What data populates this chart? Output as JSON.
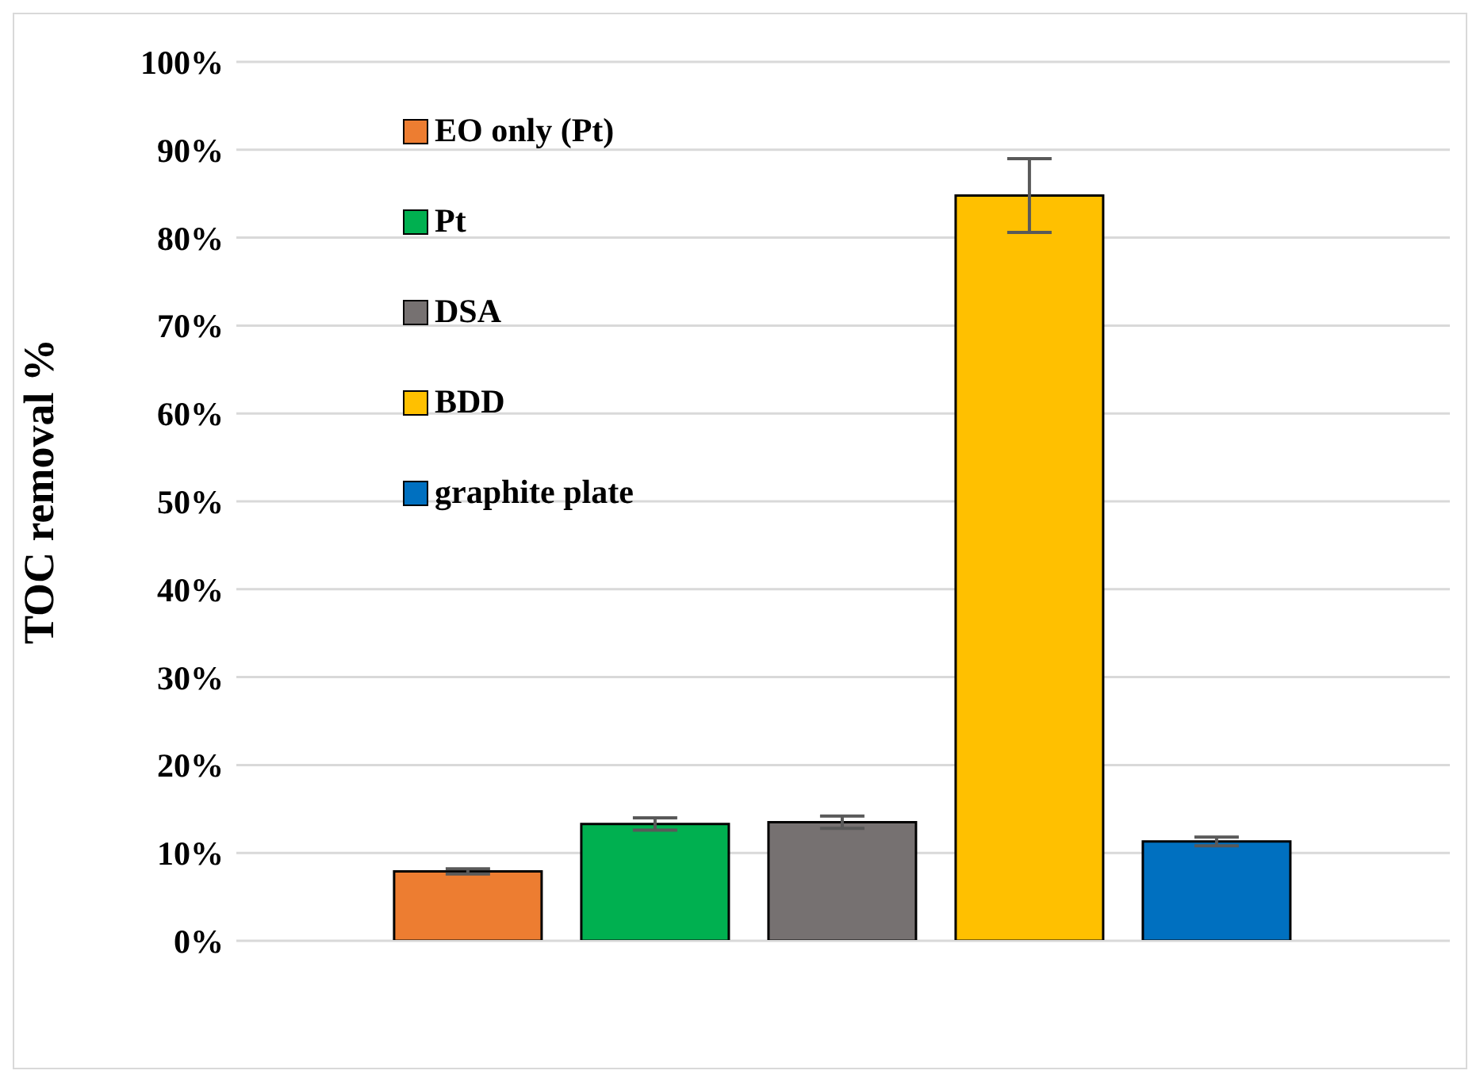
{
  "chart_data": {
    "type": "bar",
    "ylabel": "TOC removal %",
    "categories": [
      null
    ],
    "series": [
      {
        "name": "EO only (Pt)",
        "color": "#ed7d31",
        "values": [
          7.9
        ],
        "errors": [
          0.3
        ]
      },
      {
        "name": "Pt",
        "color": "#00b050",
        "values": [
          13.3
        ],
        "errors": [
          0.7
        ]
      },
      {
        "name": "DSA",
        "color": "#767171",
        "values": [
          13.5
        ],
        "errors": [
          0.7
        ]
      },
      {
        "name": "BDD",
        "color": "#ffc000",
        "values": [
          84.8
        ],
        "errors": [
          4.2
        ]
      },
      {
        "name": "graphite plate",
        "color": "#0070c0",
        "values": [
          11.3
        ],
        "errors": [
          0.5
        ]
      }
    ],
    "ylim": [
      0,
      100
    ],
    "yticks": [
      {
        "value": 0,
        "label": "0%"
      },
      {
        "value": 10,
        "label": "10%"
      },
      {
        "value": 20,
        "label": "20%"
      },
      {
        "value": 30,
        "label": "30%"
      },
      {
        "value": 40,
        "label": "40%"
      },
      {
        "value": 50,
        "label": "50%"
      },
      {
        "value": 60,
        "label": "60%"
      },
      {
        "value": 70,
        "label": "70%"
      },
      {
        "value": 80,
        "label": "80%"
      },
      {
        "value": 90,
        "label": "90%"
      },
      {
        "value": 100,
        "label": "100%"
      }
    ],
    "grid": "y",
    "legend": "top left",
    "tick_labels": "y"
  }
}
